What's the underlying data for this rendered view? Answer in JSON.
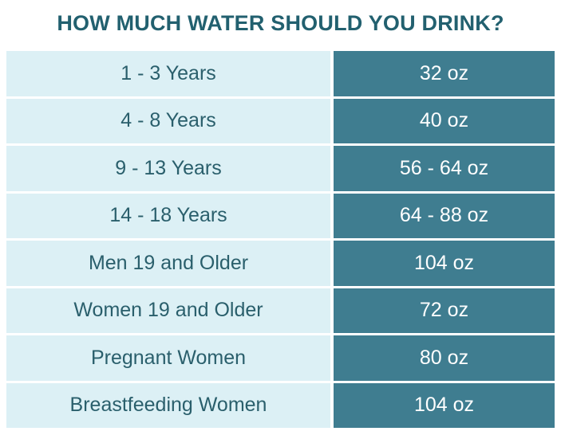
{
  "title": "HOW MUCH WATER SHOULD YOU DRINK?",
  "colors": {
    "title": "#22606f",
    "left_cell": "#dcf0f5",
    "right_cell": "#3f7d90"
  },
  "rows": [
    {
      "group": "1 - 3 Years",
      "amount": "32 oz"
    },
    {
      "group": "4 - 8 Years",
      "amount": "40 oz"
    },
    {
      "group": "9 - 13 Years",
      "amount": "56 - 64 oz"
    },
    {
      "group": "14 - 18 Years",
      "amount": "64 - 88 oz"
    },
    {
      "group": "Men 19 and Older",
      "amount": "104 oz"
    },
    {
      "group": "Women 19 and Older",
      "amount": "72 oz"
    },
    {
      "group": "Pregnant Women",
      "amount": "80 oz"
    },
    {
      "group": "Breastfeeding Women",
      "amount": "104 oz"
    }
  ]
}
